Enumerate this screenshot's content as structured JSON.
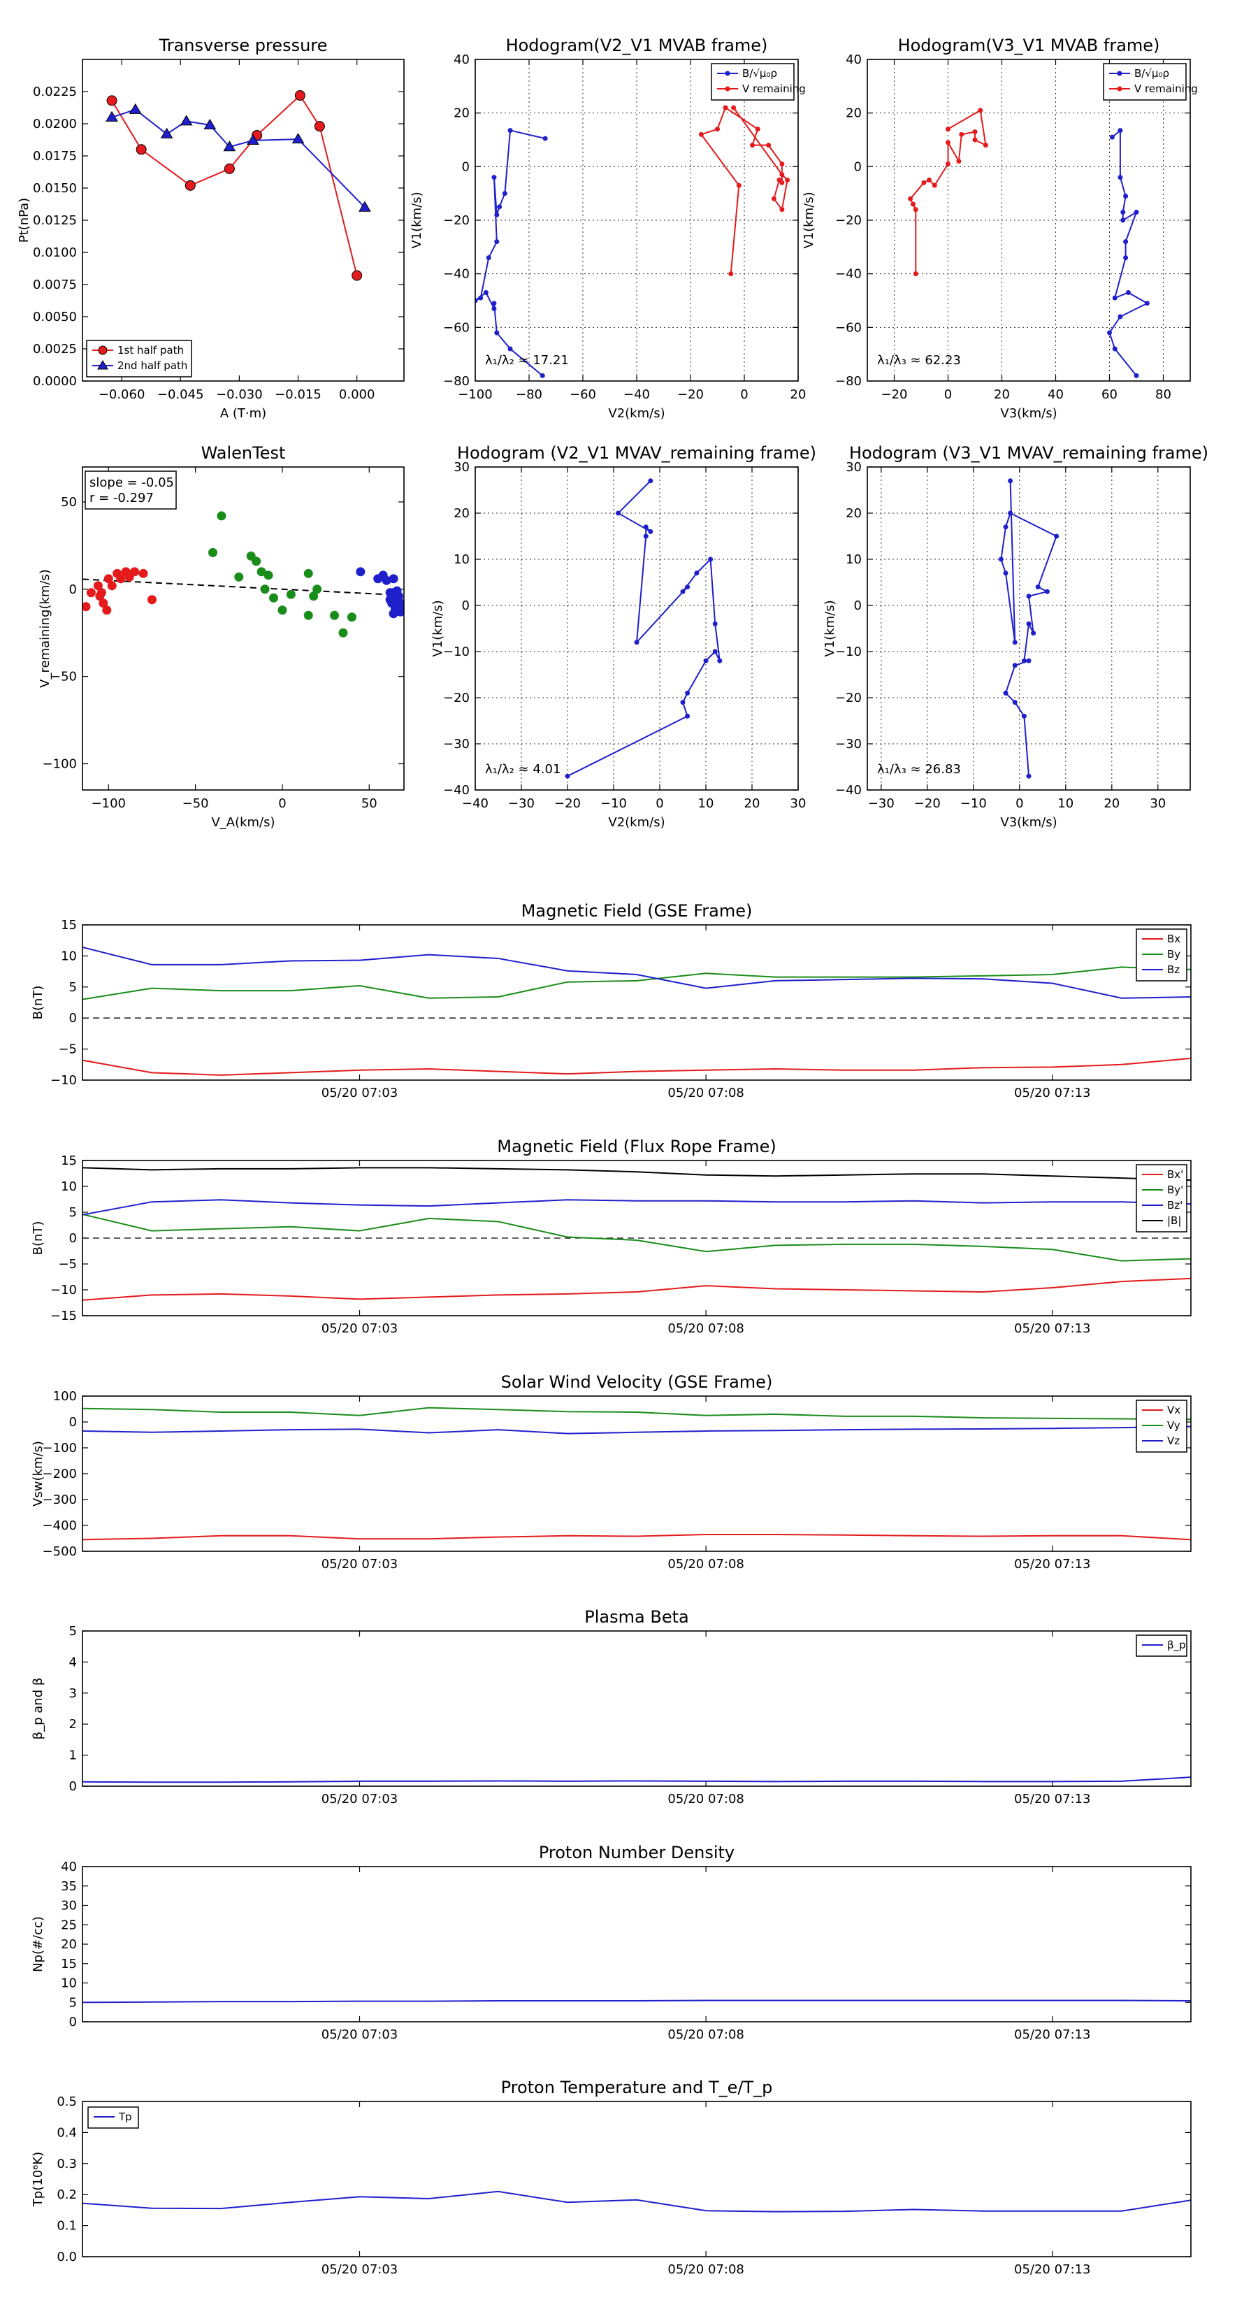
{
  "chart_data": [
    {
      "type": "line",
      "title": "Transverse pressure",
      "xlabel": "A (T·m)",
      "ylabel": "Pt(nPa)",
      "xlim": [
        -0.07,
        0.012
      ],
      "ylim": [
        0.0,
        0.025
      ],
      "xticks": [
        -0.06,
        -0.045,
        -0.03,
        -0.015,
        0.0
      ],
      "xtick_labels": [
        "-0.060",
        "-0.045",
        "-0.030",
        "-0.015",
        "0.000"
      ],
      "yticks": [
        0.0,
        0.0025,
        0.005,
        0.0075,
        0.01,
        0.0125,
        0.015,
        0.0175,
        0.02,
        0.0225
      ],
      "ytick_labels": [
        "0.0000",
        "0.0025",
        "0.0050",
        "0.0075",
        "0.0100",
        "0.0125",
        "0.0150",
        "0.0175",
        "0.0200",
        "0.0225"
      ],
      "grid": false,
      "legend": "bottom-left",
      "series": [
        {
          "name": "1st half path",
          "color": "#e41a1c",
          "marker": "circle",
          "x": [
            -0.0625,
            -0.055,
            -0.0425,
            -0.0325,
            -0.0255,
            -0.0145,
            -0.0095,
            0.0
          ],
          "y": [
            0.0218,
            0.018,
            0.0152,
            0.0165,
            0.0191,
            0.0222,
            0.0198,
            0.0082
          ]
        },
        {
          "name": "2nd half path",
          "color": "#1f1fcc",
          "marker": "triangle",
          "x": [
            -0.0625,
            -0.0565,
            -0.0485,
            -0.0435,
            -0.0375,
            -0.0325,
            -0.0265,
            -0.015,
            0.002
          ],
          "y": [
            0.0205,
            0.0211,
            0.0192,
            0.0202,
            0.0199,
            0.0182,
            0.0187,
            0.0188,
            0.0135
          ]
        }
      ]
    },
    {
      "type": "line",
      "title": "Hodogram(V2_V1 MVAB frame)",
      "xlabel": "V2(km/s)",
      "ylabel": "V1(km/s)",
      "xlim": [
        -100,
        20
      ],
      "ylim": [
        -80,
        40
      ],
      "xticks": [
        -100,
        -80,
        -60,
        -40,
        -20,
        0,
        20
      ],
      "yticks": [
        -80,
        -60,
        -40,
        -20,
        0,
        20,
        40
      ],
      "grid": true,
      "legend": "top-right",
      "annotation": "λ₁/λ₂ ≈ 17.21",
      "series": [
        {
          "name": "B/√μ₀ρ",
          "color": "#1f1fcc",
          "x": [
            -74,
            -87,
            -89,
            -91,
            -92,
            -93,
            -92,
            -95,
            -98,
            -100,
            -96,
            -93,
            -93,
            -92,
            -87,
            -75
          ],
          "y": [
            10.5,
            13.5,
            -10,
            -15,
            -18,
            -4,
            -28,
            -34,
            -49,
            -50,
            -47,
            -53,
            -51,
            -62,
            -68,
            -78
          ]
        },
        {
          "name": "V remaining",
          "color": "#e41a1c",
          "x": [
            -5,
            -2,
            -16,
            -10,
            -7,
            5,
            3,
            9,
            14,
            14,
            13,
            11,
            14,
            16,
            14,
            -4
          ],
          "y": [
            -40,
            -7,
            12,
            14,
            22,
            14,
            8,
            8,
            1,
            -6,
            -5,
            -12,
            -16,
            -5,
            -3,
            22
          ]
        }
      ]
    },
    {
      "type": "line",
      "title": "Hodogram(V3_V1 MVAB frame)",
      "xlabel": "V3(km/s)",
      "ylabel": "V1(km/s)",
      "xlim": [
        -30,
        90
      ],
      "ylim": [
        -80,
        40
      ],
      "xticks": [
        -20,
        0,
        20,
        40,
        60,
        80
      ],
      "yticks": [
        -80,
        -60,
        -40,
        -20,
        0,
        20,
        40
      ],
      "grid": true,
      "legend": "top-right",
      "annotation": "λ₁/λ₃ ≈ 62.23",
      "series": [
        {
          "name": "B/√μ₀ρ",
          "color": "#1f1fcc",
          "x": [
            61,
            64,
            64,
            66,
            65,
            65,
            70,
            66,
            66,
            62,
            67,
            74,
            64,
            60,
            62,
            70
          ],
          "y": [
            11,
            13.5,
            -4,
            -11,
            -17,
            -20,
            -17,
            -28,
            -34,
            -49,
            -47,
            -51,
            -56,
            -62,
            -68,
            -78
          ]
        },
        {
          "name": "V remaining",
          "color": "#e41a1c",
          "x": [
            -12,
            -12,
            -13,
            -14,
            -9,
            -7,
            -5,
            0,
            0,
            4,
            5,
            10,
            10,
            14,
            12,
            0
          ],
          "y": [
            -40,
            -16,
            -14,
            -12,
            -6,
            -5,
            -7,
            1,
            9,
            2,
            12,
            13,
            10,
            8,
            21,
            14
          ]
        }
      ]
    },
    {
      "type": "scatter",
      "title": "WalenTest",
      "xlabel": "V_A(km/s)",
      "ylabel": "V_remaining(km/s)",
      "xlim": [
        -115,
        70
      ],
      "ylim": [
        -115,
        70
      ],
      "xticks": [
        -100,
        -50,
        0,
        50
      ],
      "yticks": [
        -100,
        -50,
        0,
        50
      ],
      "grid": false,
      "legend": "top-left",
      "annotation_lines": [
        "slope = -0.05",
        "r = -0.297"
      ],
      "fit_line": {
        "slope": -0.05,
        "intercept": 0,
        "color": "#000000"
      },
      "series": [
        {
          "name": "",
          "color": "#e41a1c",
          "x": [
            -113,
            -110,
            -106,
            -105,
            -104,
            -103,
            -101,
            -100,
            -98,
            -95,
            -93,
            -90,
            -88,
            -85,
            -80,
            -75
          ],
          "y": [
            -10,
            -2,
            2,
            -4,
            -2,
            -8,
            -12,
            6,
            2,
            9,
            6,
            10,
            7,
            10,
            9,
            -6
          ]
        },
        {
          "name": "",
          "color": "#1a8c1a",
          "x": [
            -40,
            -35,
            -25,
            -18,
            -15,
            -12,
            -10,
            -8,
            -5,
            0,
            5,
            15,
            15,
            18,
            20,
            30,
            35,
            40
          ],
          "y": [
            21,
            42,
            7,
            19,
            16,
            10,
            0,
            8,
            -5,
            -12,
            -3,
            -15,
            9,
            -4,
            0,
            -15,
            -25,
            -16
          ]
        },
        {
          "name": "",
          "color": "#1f1fcc",
          "x": [
            45,
            55,
            58,
            60,
            62,
            64,
            63,
            65,
            66,
            67,
            68,
            66,
            64,
            62,
            65,
            67,
            68,
            69,
            66,
            64
          ],
          "y": [
            10,
            6,
            8,
            5,
            -2,
            6,
            -8,
            -4,
            -12,
            -7,
            -13,
            -10,
            -2,
            -6,
            -11,
            -4,
            -8,
            -12,
            -1,
            -14
          ]
        }
      ]
    },
    {
      "type": "line",
      "title": "Hodogram (V2_V1 MVAV_remaining frame)",
      "xlabel": "V2(km/s)",
      "ylabel": "V1(km/s)",
      "xlim": [
        -40,
        30
      ],
      "ylim": [
        -40,
        30
      ],
      "xticks": [
        -40,
        -30,
        -20,
        -10,
        0,
        10,
        20,
        30
      ],
      "yticks": [
        -40,
        -30,
        -20,
        -10,
        0,
        10,
        20,
        30
      ],
      "grid": true,
      "annotation": "λ₁/λ₂ ≈ 4.01",
      "series": [
        {
          "name": "",
          "color": "#1f1fcc",
          "x": [
            -20,
            6,
            5,
            6,
            10,
            12,
            13,
            12,
            11,
            8,
            5,
            6,
            -5,
            -3,
            -3,
            -2,
            -9,
            -2
          ],
          "y": [
            -37,
            -24,
            -21,
            -19,
            -12,
            -10,
            -12,
            -4,
            10,
            7,
            3,
            4,
            -8,
            15,
            17,
            16,
            20,
            27
          ]
        }
      ]
    },
    {
      "type": "line",
      "title": "Hodogram (V3_V1 MVAV_remaining frame)",
      "xlabel": "V3(km/s)",
      "ylabel": "V1(km/s)",
      "xlim": [
        -33,
        37
      ],
      "ylim": [
        -40,
        30
      ],
      "xticks": [
        -30,
        -20,
        -10,
        0,
        10,
        20,
        30
      ],
      "yticks": [
        -40,
        -30,
        -20,
        -10,
        0,
        10,
        20,
        30
      ],
      "grid": true,
      "annotation": "λ₁/λ₃ ≈ 26.83",
      "series": [
        {
          "name": "",
          "color": "#1f1fcc",
          "x": [
            2,
            1,
            -1,
            -3,
            -1,
            2,
            1,
            2,
            3,
            2,
            6,
            4,
            8,
            -2,
            -3,
            -4,
            -3,
            -1,
            -2
          ],
          "y": [
            -37,
            -24,
            -21,
            -19,
            -13,
            -12,
            -12,
            -4,
            -6,
            2,
            3,
            4,
            15,
            20,
            17,
            10,
            7,
            -8,
            27
          ]
        }
      ]
    },
    {
      "type": "line",
      "title": "Magnetic Field (GSE Frame)",
      "xlabel": "",
      "ylabel": "B(nT)",
      "time_axis": true,
      "ylim": [
        -10,
        15
      ],
      "yticks": [
        -10,
        -5,
        0,
        5,
        10,
        15
      ],
      "xtick_labels": [
        "05/20 07:03",
        "05/20 07:08",
        "05/20 07:13"
      ],
      "zero_line": true,
      "legend": "top-right",
      "series": [
        {
          "name": "Bx",
          "color": "#e41a1c",
          "values": [
            -6.8,
            -8.8,
            -9.2,
            -8.8,
            -8.4,
            -8.2,
            -8.6,
            -9.0,
            -8.6,
            -8.4,
            -8.2,
            -8.4,
            -8.4,
            -8.0,
            -7.9,
            -7.5,
            -6.5
          ]
        },
        {
          "name": "By",
          "color": "#1a8c1a",
          "values": [
            3.0,
            4.8,
            4.4,
            4.4,
            5.2,
            3.2,
            3.4,
            5.8,
            6.0,
            7.2,
            6.6,
            6.6,
            6.6,
            6.8,
            7.0,
            8.2,
            7.8
          ]
        },
        {
          "name": "Bz",
          "color": "#1f1fcc",
          "values": [
            11.4,
            8.6,
            8.6,
            9.2,
            9.3,
            10.2,
            9.6,
            7.6,
            7.0,
            4.8,
            6.0,
            6.2,
            6.4,
            6.3,
            5.6,
            3.2,
            3.4
          ]
        }
      ]
    },
    {
      "type": "line",
      "title": "Magnetic Field (Flux Rope Frame)",
      "xlabel": "",
      "ylabel": "B(nT)",
      "time_axis": true,
      "ylim": [
        -15,
        15
      ],
      "yticks": [
        -15,
        -10,
        -5,
        0,
        5,
        10,
        15
      ],
      "xtick_labels": [
        "05/20 07:03",
        "05/20 07:08",
        "05/20 07:13"
      ],
      "zero_line": true,
      "legend": "top-right",
      "series": [
        {
          "name": "Bx'",
          "color": "#e41a1c",
          "values": [
            -12.0,
            -11.0,
            -10.8,
            -11.2,
            -11.8,
            -11.4,
            -11.0,
            -10.8,
            -10.4,
            -9.2,
            -9.8,
            -10.0,
            -10.2,
            -10.4,
            -9.6,
            -8.4,
            -7.8
          ]
        },
        {
          "name": "By'",
          "color": "#1a8c1a",
          "values": [
            4.6,
            1.4,
            1.8,
            2.2,
            1.4,
            3.8,
            3.2,
            0.2,
            -0.4,
            -2.6,
            -1.4,
            -1.2,
            -1.2,
            -1.6,
            -2.2,
            -4.4,
            -4.0
          ]
        },
        {
          "name": "Bz'",
          "color": "#1f1fcc",
          "values": [
            4.5,
            7.0,
            7.4,
            6.8,
            6.4,
            6.2,
            6.8,
            7.4,
            7.2,
            7.2,
            7.0,
            7.0,
            7.2,
            6.8,
            7.0,
            7.0,
            6.6
          ]
        },
        {
          "name": "|B|",
          "color": "#000000",
          "values": [
            13.6,
            13.2,
            13.4,
            13.4,
            13.6,
            13.6,
            13.4,
            13.2,
            12.8,
            12.2,
            12.0,
            12.2,
            12.4,
            12.4,
            12.0,
            11.6,
            11.2
          ]
        }
      ]
    },
    {
      "type": "line",
      "title": "Solar Wind Velocity (GSE Frame)",
      "xlabel": "",
      "ylabel": "Vsw(km/s)",
      "time_axis": true,
      "ylim": [
        -500,
        100
      ],
      "yticks": [
        -500,
        -400,
        -300,
        -200,
        -100,
        0,
        100
      ],
      "xtick_labels": [
        "05/20 07:03",
        "05/20 07:08",
        "05/20 07:13"
      ],
      "legend": "top-right",
      "series": [
        {
          "name": "Vx",
          "color": "#e41a1c",
          "values": [
            -455,
            -450,
            -440,
            -440,
            -452,
            -452,
            -445,
            -440,
            -442,
            -435,
            -435,
            -437,
            -440,
            -442,
            -440,
            -440,
            -455
          ]
        },
        {
          "name": "Vy",
          "color": "#1a8c1a",
          "values": [
            52,
            48,
            38,
            38,
            25,
            55,
            48,
            40,
            38,
            25,
            30,
            22,
            22,
            16,
            14,
            12,
            10
          ]
        },
        {
          "name": "Vz",
          "color": "#1f1fcc",
          "values": [
            -35,
            -40,
            -35,
            -30,
            -28,
            -42,
            -30,
            -45,
            -40,
            -35,
            -33,
            -30,
            -28,
            -27,
            -25,
            -22,
            -18
          ]
        }
      ]
    },
    {
      "type": "line",
      "title": "Plasma Beta",
      "xlabel": "",
      "ylabel": "β_p and β",
      "time_axis": true,
      "ylim": [
        0,
        5
      ],
      "yticks": [
        0,
        1,
        2,
        3,
        4,
        5
      ],
      "xtick_labels": [
        "05/20 07:03",
        "05/20 07:08",
        "05/20 07:13"
      ],
      "legend": "top-right",
      "series": [
        {
          "name": "β_p",
          "color": "#1f1fcc",
          "values": [
            0.14,
            0.13,
            0.13,
            0.14,
            0.16,
            0.16,
            0.17,
            0.16,
            0.17,
            0.16,
            0.15,
            0.16,
            0.16,
            0.15,
            0.15,
            0.16,
            0.29
          ]
        }
      ]
    },
    {
      "type": "line",
      "title": "Proton Number Density",
      "xlabel": "",
      "ylabel": "Np(#/cc)",
      "time_axis": true,
      "ylim": [
        0,
        40
      ],
      "yticks": [
        0,
        5,
        10,
        15,
        20,
        25,
        30,
        35,
        40
      ],
      "xtick_labels": [
        "05/20 07:03",
        "05/20 07:08",
        "05/20 07:13"
      ],
      "series": [
        {
          "name": "",
          "color": "#1f1fcc",
          "values": [
            5.0,
            5.1,
            5.2,
            5.2,
            5.3,
            5.3,
            5.4,
            5.4,
            5.4,
            5.5,
            5.5,
            5.5,
            5.5,
            5.5,
            5.5,
            5.5,
            5.4
          ]
        }
      ]
    },
    {
      "type": "line",
      "title": "Proton Temperature and T_e/T_p",
      "xlabel": "",
      "ylabel": "Tp(10⁶K)",
      "time_axis": true,
      "ylim": [
        0,
        0.5
      ],
      "yticks": [
        0,
        0.1,
        0.2,
        0.3,
        0.4,
        0.5
      ],
      "ytick_labels": [
        "0.0",
        "0.1",
        "0.2",
        "0.3",
        "0.4",
        "0.5"
      ],
      "xtick_labels": [
        "05/20 07:03",
        "05/20 07:08",
        "05/20 07:13"
      ],
      "legend": "top-left",
      "series": [
        {
          "name": "Tp",
          "color": "#1f1fcc",
          "values": [
            0.172,
            0.156,
            0.155,
            0.175,
            0.193,
            0.187,
            0.21,
            0.175,
            0.183,
            0.148,
            0.145,
            0.146,
            0.152,
            0.147,
            0.147,
            0.147,
            0.182
          ]
        }
      ]
    }
  ]
}
